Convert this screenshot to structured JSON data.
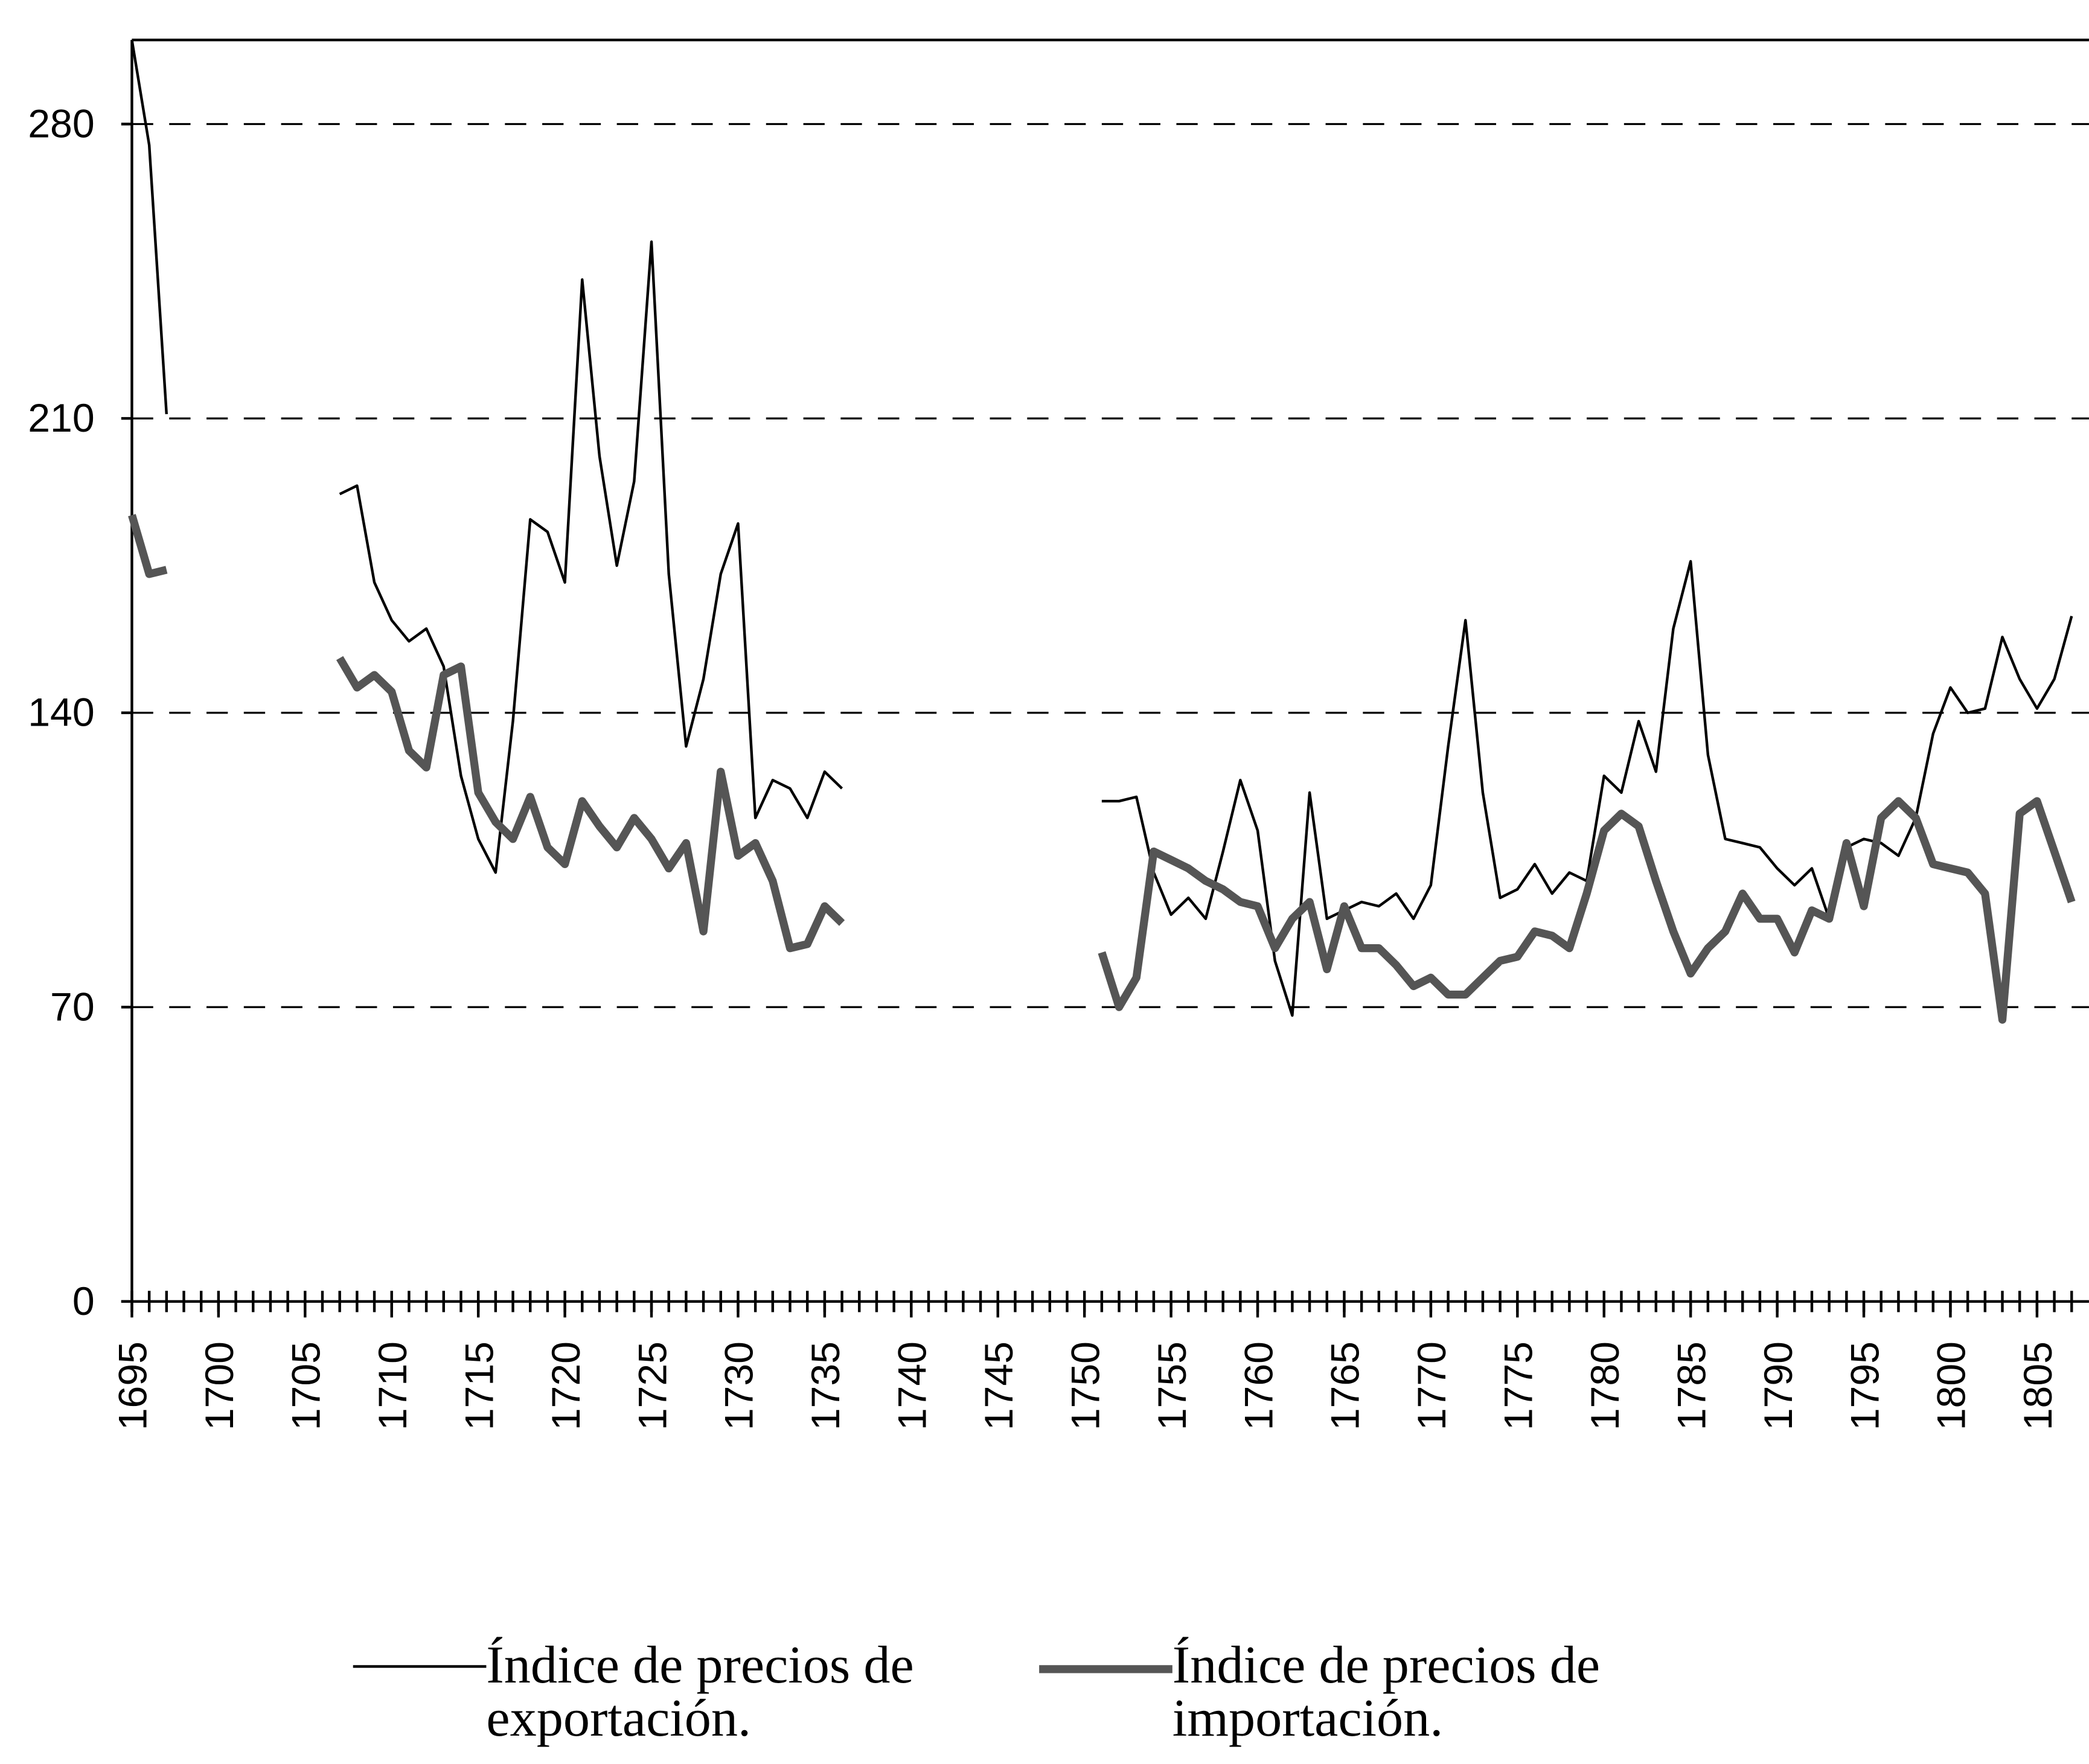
{
  "chart_data": {
    "type": "line",
    "x": [
      1695,
      1696,
      1697,
      1698,
      1699,
      1700,
      1701,
      1702,
      1703,
      1704,
      1705,
      1706,
      1707,
      1708,
      1709,
      1710,
      1711,
      1712,
      1713,
      1714,
      1715,
      1716,
      1717,
      1718,
      1719,
      1720,
      1721,
      1722,
      1723,
      1724,
      1725,
      1726,
      1727,
      1728,
      1729,
      1730,
      1731,
      1732,
      1733,
      1734,
      1735,
      1736,
      1737,
      1738,
      1739,
      1740,
      1741,
      1742,
      1743,
      1744,
      1745,
      1746,
      1747,
      1748,
      1749,
      1750,
      1751,
      1752,
      1753,
      1754,
      1755,
      1756,
      1757,
      1758,
      1759,
      1760,
      1761,
      1762,
      1763,
      1764,
      1765,
      1766,
      1767,
      1768,
      1769,
      1770,
      1771,
      1772,
      1773,
      1774,
      1775,
      1776,
      1777,
      1778,
      1779,
      1780,
      1781,
      1782,
      1783,
      1784,
      1785,
      1786,
      1787,
      1788,
      1789,
      1790,
      1791,
      1792,
      1793,
      1794,
      1795,
      1796,
      1797,
      1798,
      1799,
      1800,
      1801,
      1802,
      1803,
      1804,
      1805,
      1806,
      1807
    ],
    "series": [
      {
        "name": "Índice de precios de exportación.",
        "color": "#000000",
        "width": 2,
        "values": [
          300,
          275,
          211,
          null,
          null,
          null,
          null,
          null,
          null,
          null,
          null,
          null,
          192,
          194,
          171,
          162,
          157,
          160,
          151,
          125,
          110,
          102,
          138,
          186,
          183,
          171,
          243,
          201,
          175,
          195,
          252,
          173,
          132,
          148,
          173,
          185,
          115,
          124,
          122,
          115,
          126,
          122,
          null,
          null,
          null,
          null,
          null,
          null,
          null,
          null,
          null,
          null,
          null,
          null,
          null,
          null,
          119,
          119,
          120,
          102,
          92,
          96,
          91,
          107,
          124,
          112,
          81,
          68,
          121,
          91,
          93,
          95,
          94,
          97,
          91,
          99,
          132,
          162,
          121,
          96,
          98,
          104,
          97,
          102,
          100,
          125,
          121,
          138,
          126,
          160,
          176,
          130,
          110,
          109,
          108,
          103,
          99,
          103,
          91,
          108,
          110,
          109,
          106,
          115,
          135,
          146,
          140,
          141,
          158,
          148,
          141,
          148,
          163
        ]
      },
      {
        "name": "Índice de precios de importación.",
        "color": "#555555",
        "width": 6,
        "values": [
          187,
          173,
          174,
          null,
          null,
          null,
          null,
          null,
          null,
          null,
          null,
          null,
          153,
          146,
          149,
          145,
          131,
          127,
          149,
          151,
          121,
          114,
          110,
          120,
          108,
          104,
          119,
          113,
          108,
          115,
          110,
          103,
          109,
          88,
          126,
          106,
          109,
          100,
          84,
          85,
          94,
          90,
          null,
          null,
          null,
          null,
          null,
          null,
          null,
          null,
          null,
          null,
          null,
          null,
          null,
          null,
          83,
          70,
          77,
          107,
          105,
          103,
          100,
          98,
          95,
          94,
          84,
          91,
          95,
          79,
          94,
          84,
          84,
          80,
          75,
          77,
          73,
          73,
          77,
          81,
          82,
          88,
          87,
          84,
          97,
          112,
          116,
          113,
          100,
          88,
          78,
          84,
          88,
          97,
          91,
          91,
          83,
          93,
          91,
          109,
          94,
          115,
          119,
          115,
          104,
          103,
          102,
          97,
          67,
          116,
          119,
          107,
          95
        ]
      }
    ],
    "xlim": [
      1695,
      1808
    ],
    "xticks": [
      1695,
      1700,
      1705,
      1710,
      1715,
      1720,
      1725,
      1730,
      1735,
      1740,
      1745,
      1750,
      1755,
      1760,
      1765,
      1770,
      1775,
      1780,
      1785,
      1790,
      1795,
      1800,
      1805
    ],
    "ylim": [
      0,
      300
    ],
    "yticks": [
      0,
      70,
      140,
      210,
      280
    ],
    "grid": true
  }
}
